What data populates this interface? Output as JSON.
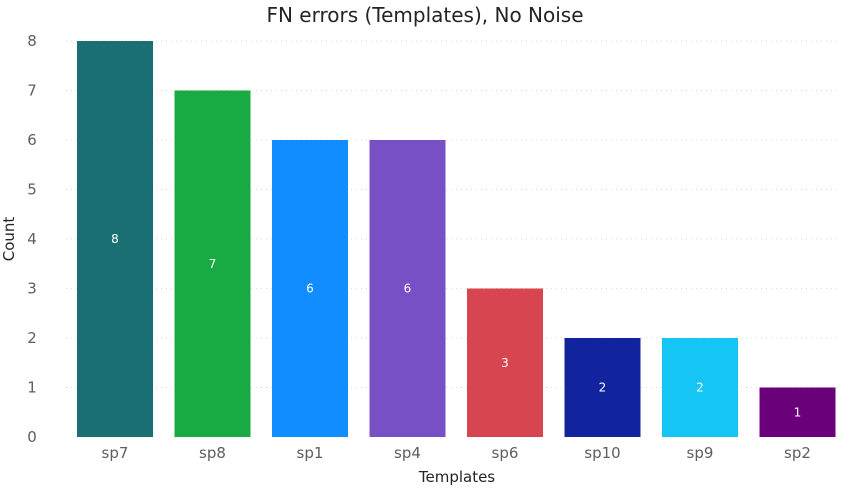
{
  "chart_data": {
    "type": "bar",
    "title": "FN errors (Templates), No Noise",
    "xlabel": "Templates",
    "ylabel": "Count",
    "categories": [
      "sp7",
      "sp8",
      "sp1",
      "sp4",
      "sp6",
      "sp10",
      "sp9",
      "sp2"
    ],
    "values": [
      8,
      7,
      6,
      6,
      3,
      2,
      2,
      1
    ],
    "colors": [
      "#1a6f73",
      "#1aaa44",
      "#118dff",
      "#7650c4",
      "#d64550",
      "#12239e",
      "#15c6f4",
      "#6b007b"
    ],
    "ylim": [
      0,
      8
    ],
    "yticks": [
      0,
      1,
      2,
      3,
      4,
      5,
      6,
      7,
      8
    ],
    "grid": true,
    "data_labels": true
  }
}
